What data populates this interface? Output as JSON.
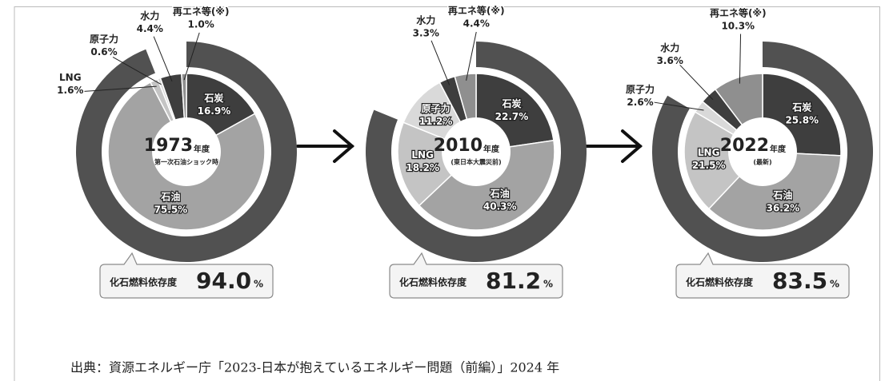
{
  "chart_data": [
    {
      "type": "pie",
      "year": "1973",
      "year_suffix": "年度",
      "note": "第一次石油ショック時",
      "categories": [
        "石炭",
        "石油",
        "LNG",
        "原子力",
        "水力",
        "再エネ等(※)"
      ],
      "values": [
        16.9,
        75.5,
        1.6,
        0.6,
        4.4,
        1.0
      ],
      "value_labels": [
        "16.9%",
        "75.5%",
        "1.6%",
        "0.6%",
        "4.4%",
        "1.0%"
      ],
      "colors": [
        "#3e3e3e",
        "#a3a3a3",
        "#c4c4c4",
        "#d9d9d9",
        "#3e3e3e",
        "#8f8f8f"
      ],
      "fossil_dependency": {
        "label": "化石燃料依存度",
        "value": 94.0,
        "value_label": "94.0",
        "unit": "%",
        "color": "#515151"
      }
    },
    {
      "type": "pie",
      "year": "2010",
      "year_suffix": "年度",
      "note": "(東日本大震災前)",
      "categories": [
        "石炭",
        "石油",
        "LNG",
        "原子力",
        "水力",
        "再エネ等(※)"
      ],
      "values": [
        22.7,
        40.3,
        18.2,
        11.2,
        3.3,
        4.4
      ],
      "value_labels": [
        "22.7%",
        "40.3%",
        "18.2%",
        "11.2%",
        "3.3%",
        "4.4%"
      ],
      "colors": [
        "#3e3e3e",
        "#a3a3a3",
        "#c4c4c4",
        "#d9d9d9",
        "#3e3e3e",
        "#8f8f8f"
      ],
      "fossil_dependency": {
        "label": "化石燃料依存度",
        "value": 81.2,
        "value_label": "81.2",
        "unit": "%",
        "color": "#515151"
      }
    },
    {
      "type": "pie",
      "year": "2022",
      "year_suffix": "年度",
      "note": "(最新)",
      "categories": [
        "石炭",
        "石油",
        "LNG",
        "原子力",
        "水力",
        "再エネ等(※)"
      ],
      "values": [
        25.8,
        36.2,
        21.5,
        2.6,
        3.6,
        10.3
      ],
      "value_labels": [
        "25.8%",
        "36.2%",
        "21.5%",
        "2.6%",
        "3.6%",
        "10.3%"
      ],
      "colors": [
        "#3e3e3e",
        "#a3a3a3",
        "#c4c4c4",
        "#d9d9d9",
        "#3e3e3e",
        "#8f8f8f"
      ],
      "fossil_dependency": {
        "label": "化石燃料依存度",
        "value": 83.5,
        "value_label": "83.5",
        "unit": "%",
        "color": "#515151"
      }
    }
  ],
  "source": "出典：資源エネルギー庁「2023-日本が抱えているエネルギー問題（前編）」2024 年"
}
